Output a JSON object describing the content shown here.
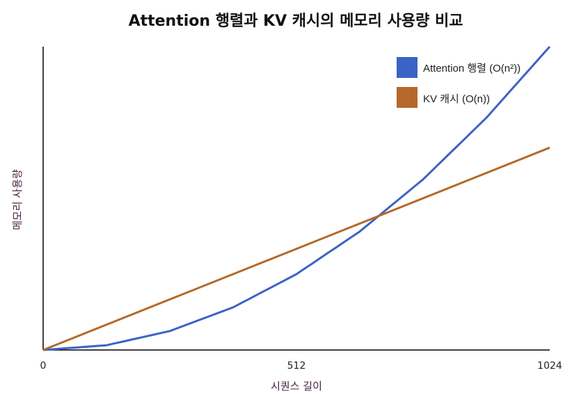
{
  "chart_data": {
    "type": "line",
    "title": "Attention 행렬과 KV 캐시의 메모리 사용량 비교",
    "xlabel": "시퀀스 길이",
    "ylabel": "메모리 사용량",
    "x_ticks": [
      "0",
      "512",
      "1024"
    ],
    "xlim": [
      0,
      1024
    ],
    "ylim": [
      0,
      1
    ],
    "grid": false,
    "legend_position": "top-right",
    "axis_title_color": "#4a2040",
    "series": [
      {
        "name": "Attention 행렬 (O(n²))",
        "color": "#3b63c6",
        "x": [
          0,
          128,
          256,
          384,
          512,
          640,
          768,
          896,
          1024
        ],
        "y": [
          0,
          0.0156,
          0.0625,
          0.1406,
          0.25,
          0.3906,
          0.5625,
          0.7656,
          1.0
        ]
      },
      {
        "name": "KV 캐시 (O(n))",
        "color": "#b4692a",
        "x": [
          0,
          1024
        ],
        "y": [
          0,
          0.667
        ]
      }
    ]
  }
}
